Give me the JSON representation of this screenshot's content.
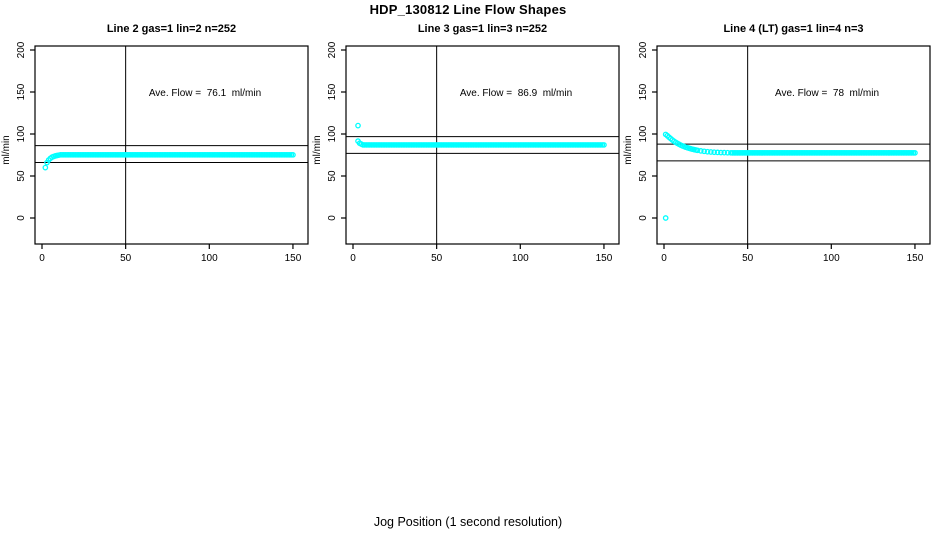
{
  "title": "HDP_130812  Line Flow Shapes",
  "xlabel": "Jog Position (1 second resolution)",
  "colors": {
    "points": "#00FFFF",
    "axis": "#000000",
    "background": "#ffffff"
  },
  "chart_data": [
    {
      "type": "scatter",
      "title": "Line 2 gas=1 lin=2 n=252",
      "ylabel": "ml/min",
      "annotation": "Ave. Flow =  76.1  ml/min",
      "ave_flow_ml_min": 76.1,
      "n_points": 252,
      "xticks": [
        0,
        50,
        100,
        150
      ],
      "yticks": [
        0,
        50,
        100,
        150,
        200
      ],
      "xlim": [
        -4,
        159
      ],
      "ylim": [
        -31,
        205
      ],
      "grid": false,
      "hlines": [
        86.1,
        66.1
      ],
      "vlines": [
        50
      ],
      "outlier_points": [
        [
          2,
          60
        ]
      ],
      "rise_points": [
        [
          3,
          66
        ],
        [
          4,
          69
        ],
        [
          5,
          71
        ],
        [
          6,
          72.5
        ],
        [
          7,
          73.3
        ],
        [
          8,
          74
        ],
        [
          9,
          74.4
        ],
        [
          10,
          74.8
        ]
      ],
      "flat_segment": {
        "x_from": 11,
        "x_to": 150,
        "x_step": 1,
        "y": 75.2
      }
    },
    {
      "type": "scatter",
      "title": "Line 3 gas=1 lin=3 n=252",
      "ylabel": "ml/min",
      "annotation": "Ave. Flow =  86.9  ml/min",
      "ave_flow_ml_min": 86.9,
      "n_points": 252,
      "xticks": [
        0,
        50,
        100,
        150
      ],
      "yticks": [
        0,
        50,
        100,
        150,
        200
      ],
      "xlim": [
        -4,
        159
      ],
      "ylim": [
        -31,
        205
      ],
      "grid": false,
      "hlines": [
        96.9,
        76.9
      ],
      "vlines": [
        50
      ],
      "outlier_points": [
        [
          3,
          110
        ]
      ],
      "rise_points": [
        [
          3,
          91.5
        ],
        [
          4,
          89
        ],
        [
          5,
          88
        ]
      ],
      "flat_segment": {
        "x_from": 6,
        "x_to": 150,
        "x_step": 1,
        "y": 87
      }
    },
    {
      "type": "scatter",
      "title": "Line 4 (LT) gas=1 lin=4 n=3",
      "ylabel": "ml/min",
      "annotation": "Ave. Flow =  78  ml/min",
      "ave_flow_ml_min": 78,
      "n_points": 3,
      "xticks": [
        0,
        50,
        100,
        150
      ],
      "yticks": [
        0,
        50,
        100,
        150,
        200
      ],
      "xlim": [
        -4,
        159
      ],
      "ylim": [
        -31,
        205
      ],
      "grid": false,
      "hlines": [
        88,
        68
      ],
      "vlines": [
        50
      ],
      "outlier_points": [
        [
          1,
          0
        ]
      ],
      "rise_points": [
        [
          1,
          99.5
        ],
        [
          2,
          98
        ],
        [
          3,
          96.2
        ],
        [
          4,
          94.5
        ],
        [
          5,
          92.9
        ],
        [
          6,
          91.4
        ],
        [
          7,
          90.1
        ],
        [
          8,
          88.9
        ],
        [
          9,
          87.8
        ],
        [
          10,
          86.8
        ],
        [
          11,
          85.9
        ],
        [
          12,
          85.1
        ],
        [
          13,
          84.3
        ],
        [
          14,
          83.6
        ],
        [
          15,
          83
        ],
        [
          16,
          82.4
        ],
        [
          17,
          81.9
        ],
        [
          18,
          81.4
        ],
        [
          19,
          81
        ],
        [
          20,
          80.6
        ],
        [
          22,
          79.9
        ],
        [
          24,
          79.4
        ],
        [
          26,
          78.9
        ],
        [
          28,
          78.6
        ],
        [
          30,
          78.3
        ],
        [
          32,
          78.1
        ],
        [
          34,
          77.9
        ],
        [
          36,
          77.8
        ],
        [
          38,
          77.7
        ],
        [
          40,
          77.6
        ]
      ],
      "flat_segment": {
        "x_from": 41,
        "x_to": 150,
        "x_step": 1,
        "y": 77.5
      }
    }
  ]
}
